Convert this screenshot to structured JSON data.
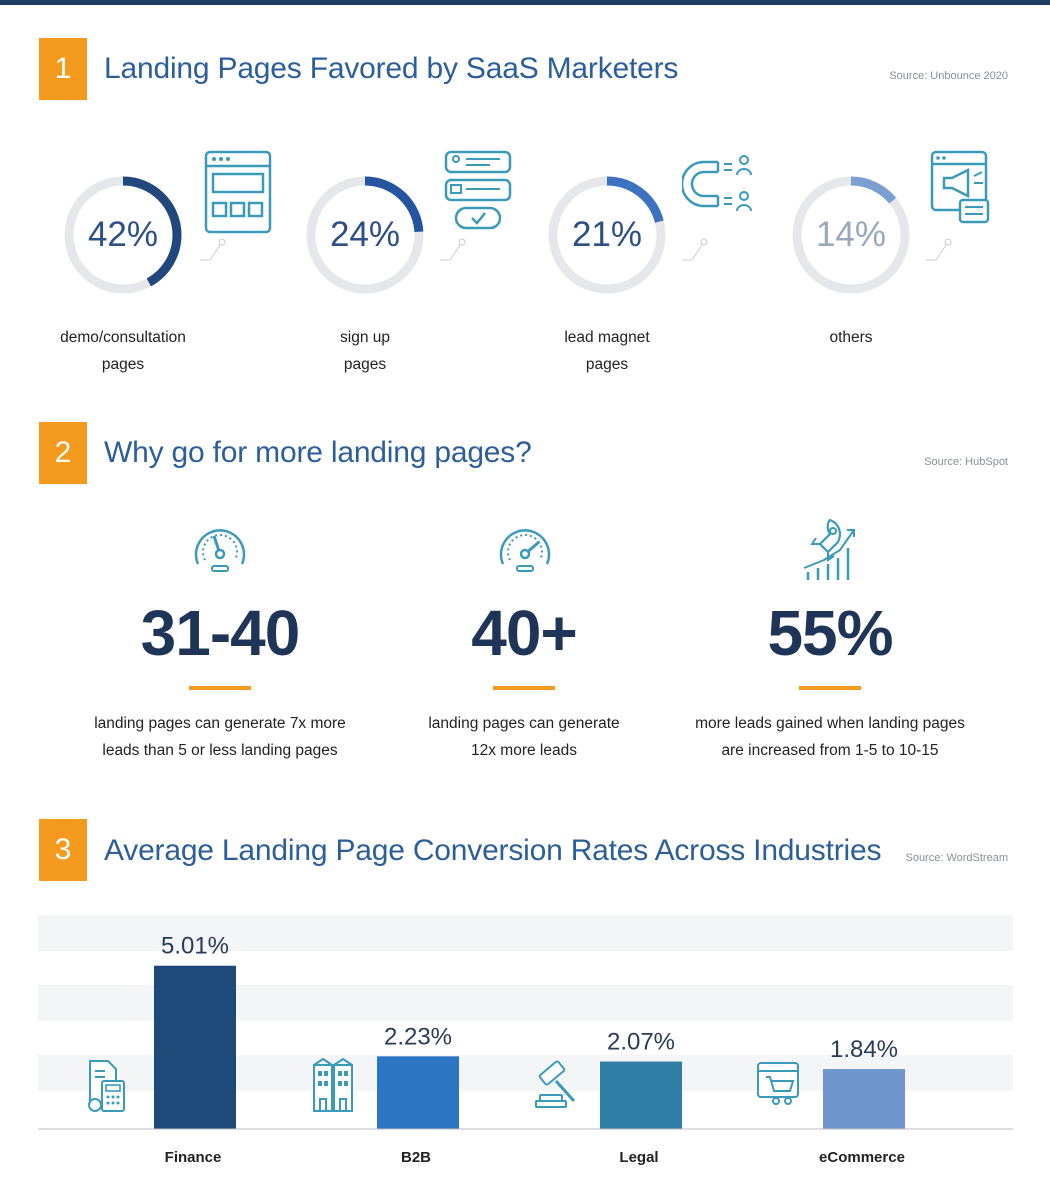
{
  "colors": {
    "accent_orange": "#f39a1f",
    "navy": "#1f3557",
    "title_blue": "#2c5e9a",
    "ring_gray": "#e6e7ea",
    "icon_teal": "#3a9ab8"
  },
  "section1": {
    "number": "1",
    "title": "Landing Pages Favored by SaaS Marketers",
    "source": "Source: Unbounce 2020",
    "items": [
      {
        "percent": 42,
        "value_label": "42%",
        "label_line1": "demo/consultation",
        "label_line2": "pages",
        "icon": "browser-window-icon"
      },
      {
        "percent": 24,
        "value_label": "24%",
        "label_line1": "sign up",
        "label_line2": "pages",
        "icon": "signup-form-icon"
      },
      {
        "percent": 21,
        "value_label": "21%",
        "label_line1": "lead magnet",
        "label_line2": "pages",
        "icon": "magnet-icon"
      },
      {
        "percent": 14,
        "value_label": "14%",
        "label_line1": "others",
        "label_line2": "",
        "icon": "megaphone-icon"
      }
    ]
  },
  "section2": {
    "number": "2",
    "title": "Why go for more landing pages?",
    "source": "Source: HubSpot",
    "stats": [
      {
        "value": "31-40",
        "desc_line1": "landing pages can generate 7x more",
        "desc_line2": "leads than 5 or less landing pages",
        "icon": "speedometer-icon"
      },
      {
        "value": "40+",
        "desc_line1": "landing pages can generate",
        "desc_line2": "12x more leads",
        "icon": "speedometer-high-icon"
      },
      {
        "value": "55%",
        "desc_line1": "more leads gained when landing pages",
        "desc_line2": "are increased from 1-5 to 10-15",
        "icon": "rocket-growth-icon"
      }
    ]
  },
  "section3": {
    "number": "3",
    "title": "Average Landing Page Conversion Rates Across Industries",
    "source": "Source: WordStream"
  },
  "chart_data": {
    "type": "bar",
    "categories": [
      "Finance",
      "B2B",
      "Legal",
      "eCommerce"
    ],
    "values": [
      5.01,
      2.23,
      2.07,
      1.84
    ],
    "value_labels": [
      "5.01%",
      "2.23%",
      "2.07%",
      "1.84%"
    ],
    "bar_colors": [
      "#1e4a7a",
      "#2a76c2",
      "#2e7ea6",
      "#6f96cc"
    ],
    "icons": [
      "calculator-icon",
      "buildings-icon",
      "gavel-icon",
      "shopping-cart-icon"
    ],
    "title": "",
    "xlabel": "",
    "ylabel": "",
    "ylim": [
      0,
      5.4
    ],
    "grid": "horizontal-bands"
  }
}
